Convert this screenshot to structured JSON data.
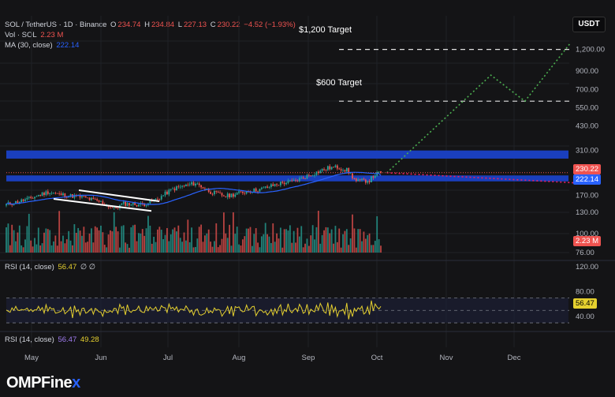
{
  "header": {
    "pair": "SOL / TetherUS · 1D · Binance",
    "o_label": "O",
    "o_value": "234.74",
    "h_label": "H",
    "h_value": "234.84",
    "l_label": "L",
    "l_value": "227.13",
    "c_label": "C",
    "c_value": "230.22",
    "change": "−4.52 (−1.93%)",
    "vol_label": "Vol · SOL",
    "vol_value": "2.23 M",
    "ma_label": "MA (30, close)",
    "ma_value": "222.14"
  },
  "currency_button": "USDT",
  "rsi_legend_1": {
    "label": "RSI (14, close)",
    "value": "56.47",
    "extra": "∅ ∅"
  },
  "rsi_legend_2": {
    "label": "RSI (14, close)",
    "value1": "56.47",
    "value2": "49.28"
  },
  "price_badges": {
    "close": "230.22",
    "ma": "222.14",
    "volume": "2.23 M",
    "rsi": "56.47"
  },
  "annotations": {
    "target_1200": "$1,200 Target",
    "target_600": "$600 Target"
  },
  "watermark": {
    "text": "OMPFinex"
  },
  "colors": {
    "up": "#26a69a",
    "down": "#ef5350",
    "ma": "#2962ff",
    "rsi": "#e5d02f",
    "zone": "#1a3fbd",
    "projection": "#4caf50",
    "projection_bear": "#e91e63"
  },
  "chart_data": [
    {
      "type": "candlestick",
      "title": "SOL / TetherUS · 1D · Binance",
      "scale": "log",
      "y_ticks": [
        "1,200.00",
        "900.00",
        "700.00",
        "550.00",
        "430.00",
        "310.00",
        "170.00",
        "130.00",
        "100.00",
        "76.00"
      ],
      "x_ticks": [
        "May",
        "Jun",
        "Jul",
        "Aug",
        "Sep",
        "Oct",
        "Nov",
        "Dec"
      ],
      "last_close": 230.22,
      "ohlc_last": {
        "open": 234.74,
        "high": 234.84,
        "low": 227.13,
        "close": 230.22
      },
      "ma30_last": 222.14,
      "resistance_zone_1": [
        278,
        310
      ],
      "support_zone_2": [
        205,
        222
      ],
      "projection_bull": [
        [
          "2025-10-05",
          230
        ],
        [
          "2025-11-20",
          850
        ],
        [
          "2025-12-05",
          600
        ],
        [
          "2025-12-25",
          1300
        ]
      ],
      "projection_bear": [
        [
          "2025-10-05",
          230
        ],
        [
          "2025-12-30",
          200
        ]
      ],
      "targets": [
        1200,
        600
      ]
    },
    {
      "type": "bar",
      "title": "Vol · SOL",
      "last_value": "2.23 M"
    },
    {
      "type": "line",
      "title": "RSI (14, close)",
      "y_ticks": [
        "120.00",
        "80.00",
        "40.00"
      ],
      "last_value": 56.47,
      "bands": [
        70,
        50,
        30
      ]
    }
  ]
}
